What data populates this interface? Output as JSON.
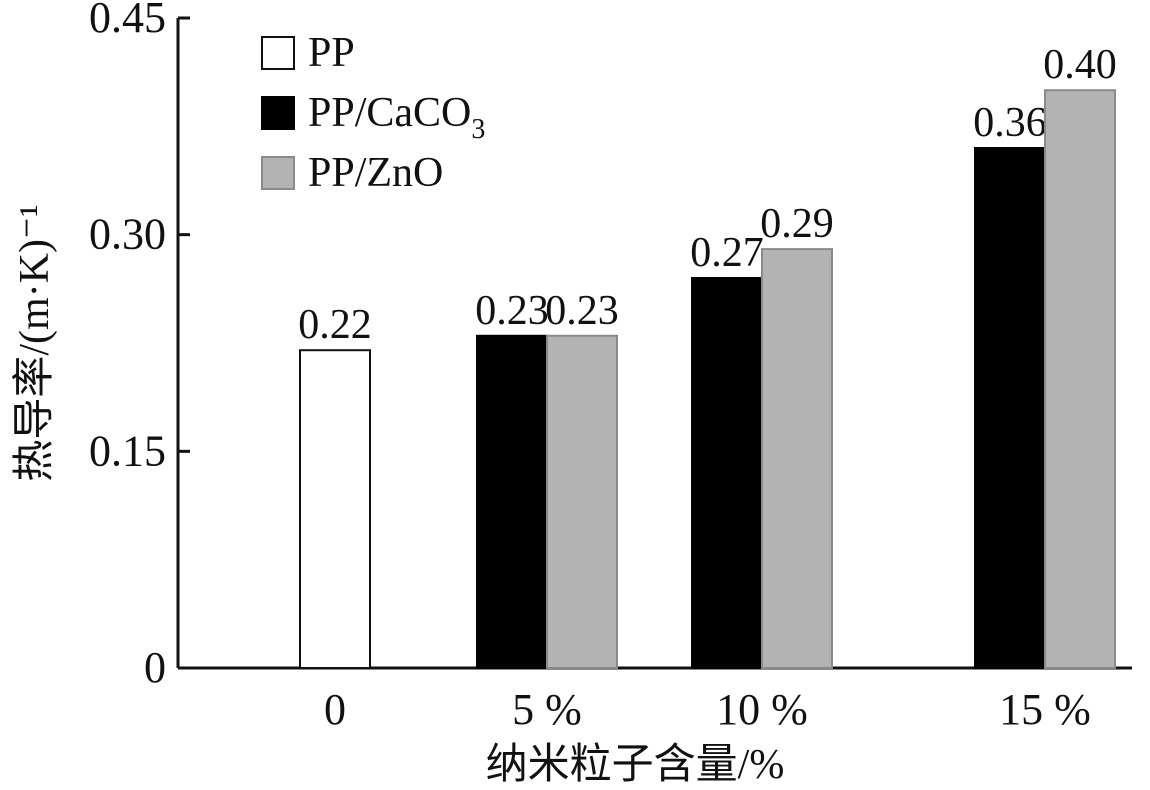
{
  "chart_data": {
    "type": "bar",
    "xlabel": "纳米粒子含量/%",
    "ylabel": "热导率/(m·K)⁻¹",
    "categories": [
      "0",
      "5 %",
      "10 %",
      "15 %"
    ],
    "ylim": [
      0,
      0.45
    ],
    "yticks": [
      "0",
      "0.15",
      "0.30",
      "0.45"
    ],
    "yticks_values": [
      0,
      0.15,
      0.3,
      0.45
    ],
    "grid": false,
    "legend_position": "top-left",
    "series": [
      {
        "name": "PP",
        "values": [
          0.22,
          null,
          null,
          null
        ],
        "labels": [
          "0.22",
          "",
          "",
          ""
        ],
        "color": "#ffffff"
      },
      {
        "name": "PP/CaCO3",
        "values": [
          null,
          0.23,
          0.27,
          0.36
        ],
        "labels": [
          "",
          "0.23",
          "0.27",
          "0.36"
        ],
        "color": "#000000"
      },
      {
        "name": "PP/ZnO",
        "values": [
          null,
          0.23,
          0.29,
          0.4
        ],
        "labels": [
          "",
          "0.23",
          "0.29",
          "0.40"
        ],
        "color": "#b3b3b3"
      }
    ]
  }
}
